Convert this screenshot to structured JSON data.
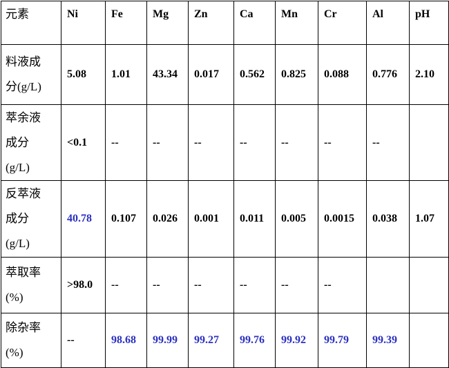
{
  "table": {
    "header": [
      "元素",
      "Ni",
      "Fe",
      "Mg",
      "Zn",
      "Ca",
      "Mn",
      "Cr",
      "Al",
      "pH"
    ],
    "highlight_color": "#2b30c0",
    "rows": [
      {
        "label": "料液成\n分(g/L)",
        "cells": [
          "5.08",
          "1.01",
          "43.34",
          "0.017",
          "0.562",
          "0.825",
          "0.088",
          "0.776",
          "2.10"
        ]
      },
      {
        "label": "萃余液\n成分\n(g/L)",
        "cells": [
          "<0.1",
          "--",
          "--",
          "--",
          "--",
          "--",
          "--",
          "--",
          null
        ]
      },
      {
        "label": "反萃液\n成分\n(g/L)",
        "cells": [
          {
            "text": "40.78",
            "highlight": true
          },
          "0.107",
          "0.026",
          "0.001",
          "0.011",
          "0.005",
          "0.0015",
          "0.038",
          "1.07"
        ]
      },
      {
        "label": "萃取率\n(%)",
        "cells": [
          ">98.0",
          "--",
          "--",
          "--",
          "--",
          "--",
          "--",
          null,
          null
        ]
      },
      {
        "label": "除杂率\n(%)",
        "cells": [
          "--",
          {
            "text": "98.68",
            "highlight": true
          },
          {
            "text": "99.99",
            "highlight": true
          },
          {
            "text": "99.27",
            "highlight": true
          },
          {
            "text": "99.76",
            "highlight": true
          },
          {
            "text": "99.92",
            "highlight": true
          },
          {
            "text": "99.79",
            "highlight": true
          },
          {
            "text": "99.39",
            "highlight": true
          },
          null
        ]
      }
    ]
  }
}
